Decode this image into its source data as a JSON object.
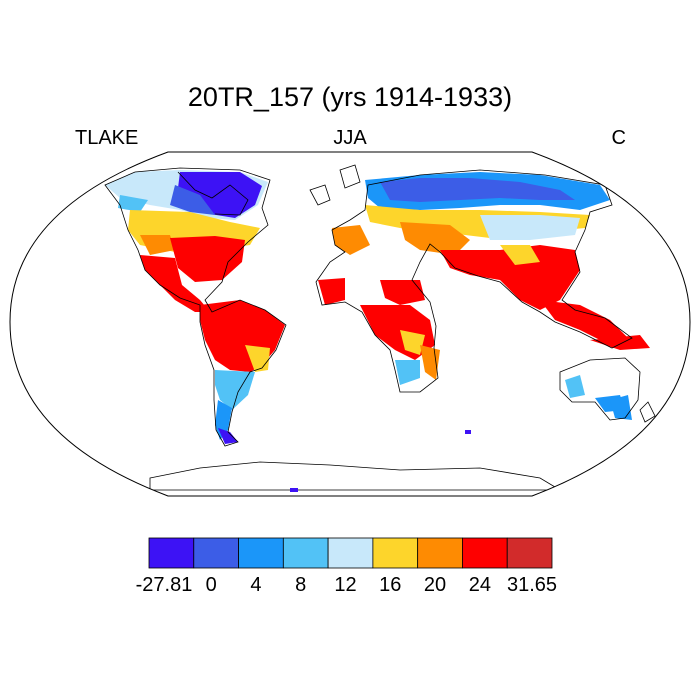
{
  "title": "20TR_157 (yrs 1914-1933)",
  "left_label": "TLAKE",
  "center_label": "JJA",
  "right_label": "C",
  "colorbar": {
    "colors": [
      "#3d12f5",
      "#3c5de7",
      "#1b96f9",
      "#52c2f6",
      "#c8e8fa",
      "#fdd52b",
      "#fe8b02",
      "#fe0000",
      "#d22b2b"
    ],
    "tick_labels": [
      "-27.81",
      "0",
      "4",
      "8",
      "12",
      "16",
      "20",
      "24",
      "31.65"
    ],
    "tick_values": [
      -27.81,
      0,
      4,
      8,
      12,
      16,
      20,
      24,
      31.65
    ]
  }
}
